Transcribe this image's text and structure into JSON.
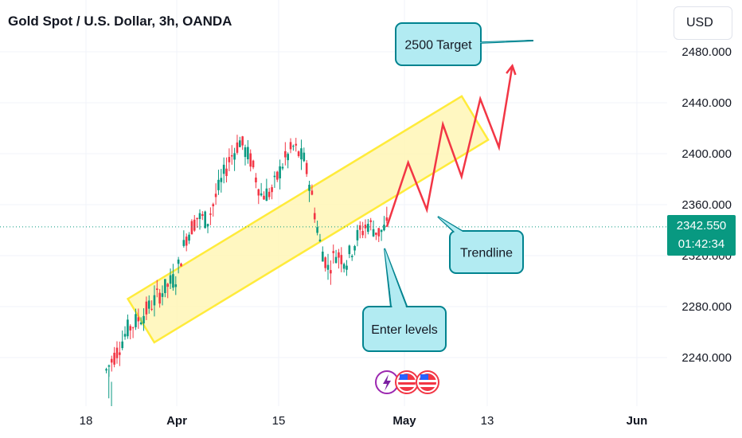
{
  "header": {
    "title": "Gold Spot / U.S. Dollar, 3h, OANDA",
    "currency": "USD"
  },
  "price_label": {
    "price": "2342.550",
    "countdown": "01:42:34"
  },
  "colors": {
    "up": "#089981",
    "down": "#f23645",
    "channel_fill": "#fff5b1",
    "channel_stroke": "#ffeb3b",
    "callout_fill": "#b2ebf2",
    "callout_stroke": "#00838f",
    "projection": "#f23645"
  },
  "annotations": {
    "target": "2500 Target",
    "trendline": "Trendline",
    "enter": "Enter levels"
  },
  "chart_data": {
    "type": "candlestick",
    "title": "Gold Spot / U.S. Dollar, 3h, OANDA",
    "x_ticks": [
      "18",
      "Apr",
      "15",
      "May",
      "13",
      "Jun"
    ],
    "y_ticks": [
      2240,
      2280,
      2320,
      2360,
      2400,
      2440,
      2480
    ],
    "ylim": [
      2214,
      2498
    ],
    "last_price": 2342.55,
    "price_path": [
      [
        0,
        2212
      ],
      [
        6,
        2200
      ],
      [
        10,
        2230
      ],
      [
        14,
        2245
      ],
      [
        18,
        2262
      ],
      [
        24,
        2274
      ],
      [
        30,
        2290
      ],
      [
        36,
        2303
      ],
      [
        40,
        2335
      ],
      [
        44,
        2350
      ],
      [
        48,
        2348
      ],
      [
        52,
        2372
      ],
      [
        56,
        2395
      ],
      [
        60,
        2410
      ],
      [
        64,
        2395
      ],
      [
        68,
        2368
      ],
      [
        72,
        2370
      ],
      [
        76,
        2392
      ],
      [
        80,
        2405
      ],
      [
        84,
        2395
      ],
      [
        86,
        2378
      ],
      [
        90,
        2330
      ],
      [
        93,
        2310
      ],
      [
        96,
        2322
      ],
      [
        100,
        2316
      ],
      [
        104,
        2335
      ],
      [
        108,
        2345
      ],
      [
        112,
        2338
      ],
      [
        115,
        2342.55
      ]
    ],
    "projection": [
      [
        115,
        2342.55
      ],
      [
        123,
        2393
      ],
      [
        130,
        2356
      ],
      [
        136,
        2423
      ],
      [
        143,
        2382
      ],
      [
        150,
        2443
      ],
      [
        157,
        2405
      ],
      [
        162,
        2469
      ]
    ],
    "channel_center_start": [
      2269,
      23
    ],
    "channel_center_end": [
      2428,
      148
    ],
    "channel_half_height": 20
  }
}
